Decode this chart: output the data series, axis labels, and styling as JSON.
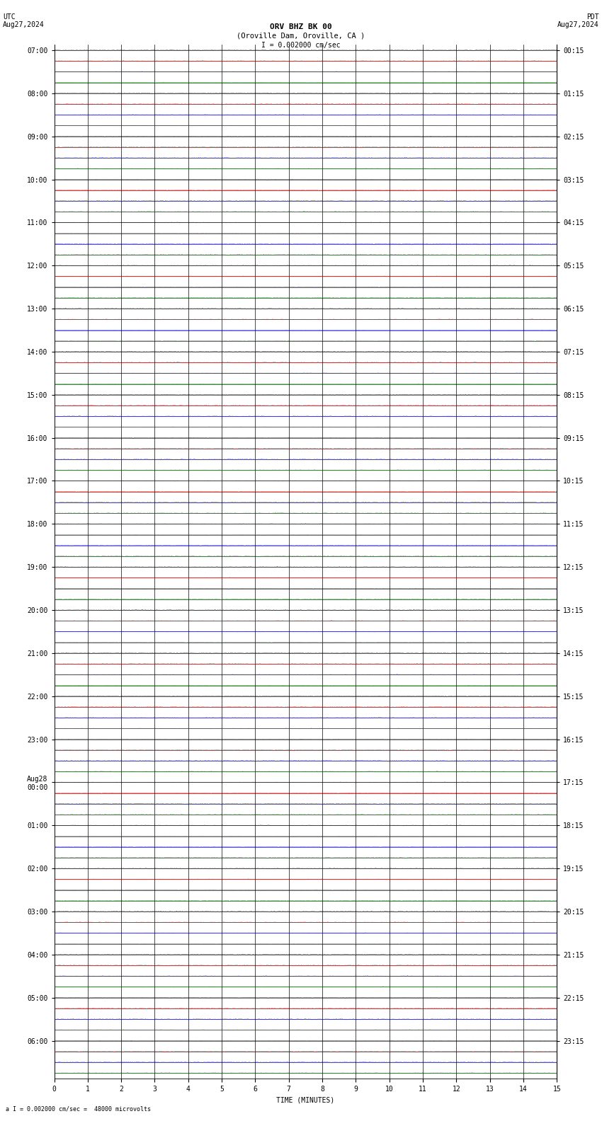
{
  "title_line1": "ORV BHZ BK 00",
  "title_line2": "(Oroville Dam, Oroville, CA )",
  "scale_label": "I = 0.002000 cm/sec",
  "bottom_label": "a I = 0.002000 cm/sec =  48000 microvolts",
  "left_header": "UTC\nAug27,2024",
  "right_header": "PDT\nAug27,2024",
  "xlabel": "TIME (MINUTES)",
  "xtick_labels": [
    "0",
    "1",
    "2",
    "3",
    "4",
    "5",
    "6",
    "7",
    "8",
    "9",
    "10",
    "11",
    "12",
    "13",
    "14",
    "15"
  ],
  "left_ytick_labels": [
    "07:00",
    "08:00",
    "09:00",
    "10:00",
    "11:00",
    "12:00",
    "13:00",
    "14:00",
    "15:00",
    "16:00",
    "17:00",
    "18:00",
    "19:00",
    "20:00",
    "21:00",
    "22:00",
    "23:00",
    "Aug28\n00:00",
    "01:00",
    "02:00",
    "03:00",
    "04:00",
    "05:00",
    "06:00"
  ],
  "right_ytick_labels": [
    "00:15",
    "01:15",
    "02:15",
    "03:15",
    "04:15",
    "05:15",
    "06:15",
    "07:15",
    "08:15",
    "09:15",
    "10:15",
    "11:15",
    "12:15",
    "13:15",
    "14:15",
    "15:15",
    "16:15",
    "17:15",
    "18:15",
    "19:15",
    "20:15",
    "21:15",
    "22:15",
    "23:15"
  ],
  "n_hours": 24,
  "subrows_per_hour": 4,
  "minutes_per_row": 15,
  "background_color": "#ffffff",
  "trace_color": "#000000",
  "grid_color": "#000000",
  "noise_amplitude": 0.012,
  "dot_colors": [
    "#000000",
    "#ff0000",
    "#0000ff",
    "#008000"
  ],
  "dot_sizes": [
    1.5,
    1.5,
    1.5,
    1.5
  ],
  "dots_per_row": 15
}
